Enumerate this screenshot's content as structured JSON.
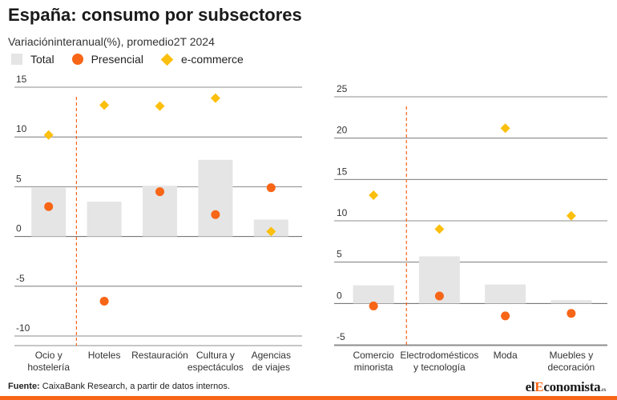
{
  "title": "España: consumo por subsectores",
  "subtitle": "Variacióninteranual(%), promedio2T 2024",
  "legend": {
    "total": "Total",
    "presencial": "Presencial",
    "ecommerce": "e-commerce"
  },
  "colors": {
    "total": "#e5e5e5",
    "presencial": "#f76516",
    "ecommerce": "#fbbf0d",
    "divider": "#f76516",
    "grid": "#666666"
  },
  "footer": {
    "label": "Fuente:",
    "text": " CaixaBank Research, a partir de datos internos."
  },
  "brand": {
    "prefix": "el",
    "accent": "E",
    "rest": "conomista",
    "suffix": ".es"
  },
  "chart_data": [
    {
      "type": "bar",
      "categories": [
        [
          "Ocio y",
          "hostelería"
        ],
        [
          "Hoteles"
        ],
        [
          "Restauración"
        ],
        [
          "Cultura y",
          "espectáculos"
        ],
        [
          "Agencias",
          "de viajes"
        ]
      ],
      "series": [
        {
          "name": "Total",
          "values": [
            4.9,
            3.5,
            5.1,
            7.7,
            1.7
          ]
        },
        {
          "name": "Presencial",
          "values": [
            3.0,
            -6.5,
            4.5,
            2.2,
            4.9
          ]
        },
        {
          "name": "e-commerce",
          "values": [
            10.2,
            13.2,
            13.1,
            13.9,
            0.5
          ]
        }
      ],
      "yticks": [
        15,
        10,
        5,
        0,
        -5,
        -10
      ],
      "ylim": [
        -10.5,
        15
      ],
      "divider_after_category": 0
    },
    {
      "type": "bar",
      "categories": [
        [
          "Comercio",
          "minorista"
        ],
        [
          "Electrodomésticos",
          "y tecnología"
        ],
        [
          "Moda"
        ],
        [
          "Muebles y",
          "decoración"
        ]
      ],
      "series": [
        {
          "name": "Total",
          "values": [
            2.2,
            5.7,
            2.3,
            0.4
          ]
        },
        {
          "name": "Presencial",
          "values": [
            -0.3,
            0.9,
            -1.5,
            -1.2
          ]
        },
        {
          "name": "e-commerce",
          "values": [
            13.1,
            9.0,
            21.2,
            10.6
          ]
        }
      ],
      "yticks": [
        25,
        20,
        15,
        10,
        5,
        0,
        -5
      ],
      "ylim": [
        -5.5,
        25
      ],
      "divider_after_category": 0
    }
  ]
}
